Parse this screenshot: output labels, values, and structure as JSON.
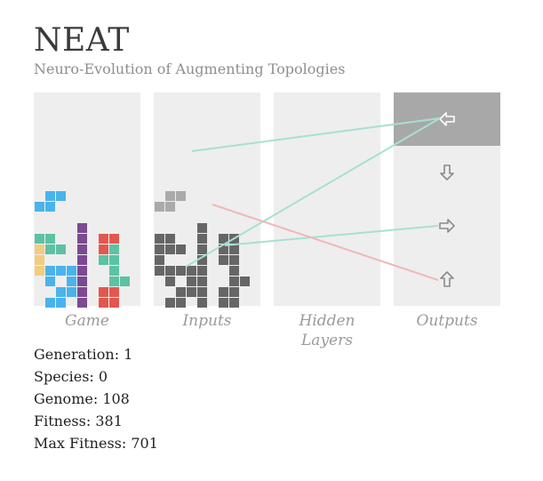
{
  "header": {
    "title": "NEAT",
    "subtitle": "Neuro-Evolution of Augmenting Topologies"
  },
  "panels": {
    "game_label": "Game",
    "inputs_label": "Inputs",
    "hidden_label": "Hidden Layers",
    "outputs_label": "Outputs"
  },
  "colors": {
    "panel_bg": "#eeeeee",
    "active_output": "#a8a8a8",
    "blue": "#4ab3ec",
    "teal": "#5cc2a4",
    "yellow": "#f1cd7e",
    "purple": "#7b4a90",
    "red": "#e3574f",
    "input_dark": "#666666",
    "input_light": "#aaaaaa",
    "link_positive": "#a6e0d4",
    "link_negative": "#f0b8b4"
  },
  "outputs": [
    {
      "icon": "arrow-left-icon",
      "active": true
    },
    {
      "icon": "arrow-down-icon",
      "active": false
    },
    {
      "icon": "arrow-right-icon",
      "active": false
    },
    {
      "icon": "arrow-up-icon",
      "active": false
    }
  ],
  "stats": {
    "generation_label": "Generation:",
    "generation": "1",
    "species_label": "Species:",
    "species": "0",
    "genome_label": "Genome:",
    "genome": "108",
    "fitness_label": "Fitness:",
    "fitness": "381",
    "max_fitness_label": "Max Fitness:",
    "max_fitness": "701"
  }
}
